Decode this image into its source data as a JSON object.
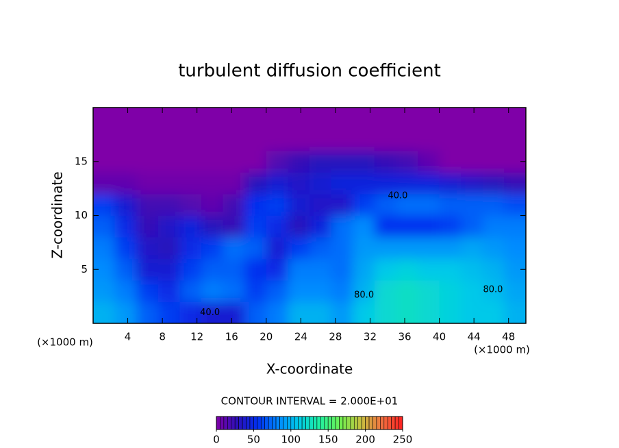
{
  "chart_data": {
    "type": "heatmap",
    "title": "turbulent diffusion coefficient",
    "xlabel": "X-coordinate",
    "ylabel": "Z-coordinate",
    "xunit": "(×1000 m)",
    "yunit": "(×1000 m)",
    "xlim": [
      0,
      50
    ],
    "ylim": [
      0,
      20
    ],
    "xticks": [
      4,
      8,
      12,
      16,
      20,
      24,
      28,
      32,
      36,
      40,
      44,
      48
    ],
    "yticks": [
      5,
      10,
      15
    ],
    "x": [
      1.25,
      3.75,
      6.25,
      8.75,
      11.25,
      13.75,
      16.25,
      18.75,
      21.25,
      23.75,
      26.25,
      28.75,
      31.25,
      33.75,
      36.25,
      38.75,
      41.25,
      43.75,
      46.25,
      48.75
    ],
    "y": [
      1,
      3,
      5,
      7,
      9,
      11,
      13,
      15,
      17,
      19
    ],
    "z": [
      [
        100,
        90,
        70,
        60,
        50,
        40,
        40,
        70,
        80,
        100,
        100,
        90,
        110,
        120,
        125,
        120,
        115,
        110,
        110,
        100
      ],
      [
        90,
        80,
        60,
        50,
        70,
        80,
        75,
        60,
        70,
        85,
        85,
        80,
        100,
        120,
        125,
        120,
        115,
        110,
        105,
        95
      ],
      [
        85,
        70,
        40,
        40,
        60,
        70,
        70,
        55,
        50,
        80,
        80,
        75,
        95,
        110,
        115,
        110,
        110,
        105,
        100,
        90
      ],
      [
        80,
        60,
        35,
        30,
        50,
        60,
        75,
        70,
        40,
        60,
        70,
        75,
        90,
        90,
        90,
        90,
        90,
        95,
        90,
        85
      ],
      [
        70,
        50,
        25,
        35,
        45,
        30,
        25,
        60,
        50,
        30,
        45,
        75,
        85,
        55,
        55,
        55,
        60,
        70,
        80,
        80
      ],
      [
        60,
        40,
        20,
        20,
        15,
        10,
        20,
        55,
        60,
        40,
        35,
        35,
        60,
        70,
        75,
        75,
        70,
        70,
        70,
        65
      ],
      [
        10,
        10,
        5,
        5,
        5,
        5,
        5,
        30,
        40,
        35,
        40,
        45,
        45,
        45,
        45,
        45,
        40,
        35,
        30,
        25
      ],
      [
        0,
        0,
        0,
        0,
        0,
        0,
        0,
        0,
        15,
        25,
        30,
        30,
        30,
        25,
        20,
        10,
        0,
        0,
        0,
        0
      ],
      [
        0,
        0,
        0,
        0,
        0,
        0,
        0,
        0,
        0,
        0,
        0,
        0,
        0,
        0,
        0,
        0,
        0,
        0,
        0,
        0
      ],
      [
        0,
        0,
        0,
        0,
        0,
        0,
        0,
        0,
        0,
        0,
        0,
        0,
        0,
        0,
        0,
        0,
        0,
        0,
        0,
        0
      ]
    ],
    "colormap": [
      "#7f00a8",
      "#2c10b8",
      "#0030f0",
      "#0088ff",
      "#00cce8",
      "#20f0a0",
      "#70f050",
      "#c8c040",
      "#f07040",
      "#ff2020"
    ],
    "clim": [
      0,
      250
    ],
    "cticks": [
      0,
      50,
      100,
      150,
      200,
      250
    ],
    "contour_interval_text": "CONTOUR INTERVAL = 2.000E+01",
    "contour_labels": [
      {
        "text": "40.0",
        "x": 35.2,
        "y": 11.8
      },
      {
        "text": "80.0",
        "x": 31.3,
        "y": 2.6
      },
      {
        "text": "80.0",
        "x": 46.2,
        "y": 3.1
      },
      {
        "text": "40.0",
        "x": 13.5,
        "y": 1.0
      }
    ]
  }
}
